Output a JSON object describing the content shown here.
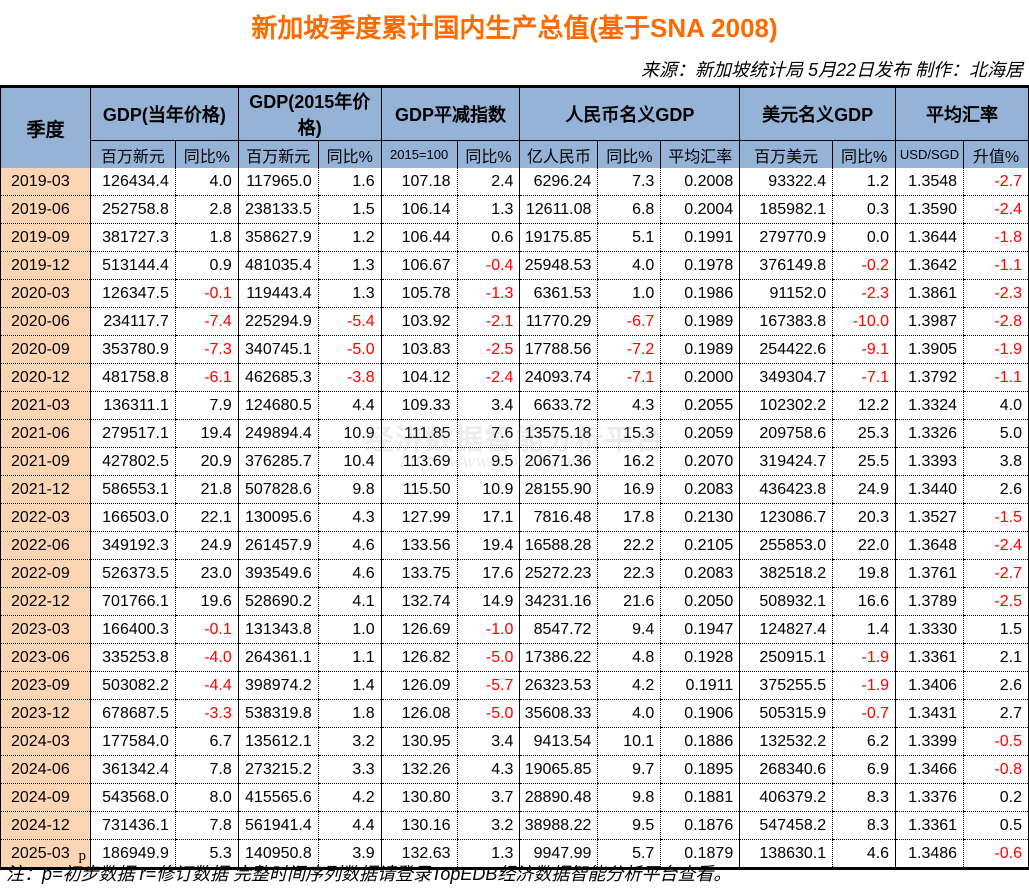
{
  "title": "新加坡季度累计国内生产总值(基于SNA 2008)",
  "source": "来源：新加坡统计局 5月22日发布  制作：北海居",
  "watermark": {
    "text": "经济数据智能分析平台",
    "url": "http://www.topedb.com"
  },
  "header": {
    "corner": "季度",
    "groups": [
      "GDP(当年价格)",
      "GDP(2015年价格)",
      "GDP平减指数",
      "人民币名义GDP",
      "美元名义GDP",
      "平均汇率"
    ],
    "sub": [
      "百万新元",
      "同比%",
      "百万新元",
      "同比%",
      "2015=100",
      "同比%",
      "亿人民币",
      "同比%",
      "平均汇率",
      "百万美元",
      "同比%",
      "USD/SGD",
      "升值%"
    ]
  },
  "colors": {
    "title": "#ff6a00",
    "header_bg": "#95b3d7",
    "quarter_bg": "#fcd5b4",
    "negative": "#ff0000"
  },
  "rows": [
    {
      "q": "2019-03",
      "flag": "",
      "v": [
        "126434.4",
        "4.0",
        "117965.0",
        "1.6",
        "107.18",
        "2.4",
        "6296.24",
        "7.3",
        "0.2008",
        "93322.4",
        "1.2",
        "1.3548",
        "-2.7"
      ]
    },
    {
      "q": "2019-06",
      "flag": "",
      "v": [
        "252758.8",
        "2.8",
        "238133.5",
        "1.5",
        "106.14",
        "1.3",
        "12611.08",
        "6.8",
        "0.2004",
        "185982.1",
        "0.3",
        "1.3590",
        "-2.4"
      ]
    },
    {
      "q": "2019-09",
      "flag": "",
      "v": [
        "381727.3",
        "1.8",
        "358627.9",
        "1.2",
        "106.44",
        "0.6",
        "19175.85",
        "5.1",
        "0.1991",
        "279770.9",
        "0.0",
        "1.3644",
        "-1.8"
      ]
    },
    {
      "q": "2019-12",
      "flag": "",
      "v": [
        "513144.4",
        "0.9",
        "481035.4",
        "1.3",
        "106.67",
        "-0.4",
        "25948.53",
        "4.0",
        "0.1978",
        "376149.8",
        "-0.2",
        "1.3642",
        "-1.1"
      ]
    },
    {
      "q": "2020-03",
      "flag": "",
      "v": [
        "126347.5",
        "-0.1",
        "119443.4",
        "1.3",
        "105.78",
        "-1.3",
        "6361.53",
        "1.0",
        "0.1986",
        "91152.0",
        "-2.3",
        "1.3861",
        "-2.3"
      ]
    },
    {
      "q": "2020-06",
      "flag": "",
      "v": [
        "234117.7",
        "-7.4",
        "225294.9",
        "-5.4",
        "103.92",
        "-2.1",
        "11770.29",
        "-6.7",
        "0.1989",
        "167383.8",
        "-10.0",
        "1.3987",
        "-2.8"
      ]
    },
    {
      "q": "2020-09",
      "flag": "",
      "v": [
        "353780.9",
        "-7.3",
        "340745.1",
        "-5.0",
        "103.83",
        "-2.5",
        "17788.56",
        "-7.2",
        "0.1989",
        "254422.6",
        "-9.1",
        "1.3905",
        "-1.9"
      ]
    },
    {
      "q": "2020-12",
      "flag": "",
      "v": [
        "481758.8",
        "-6.1",
        "462685.3",
        "-3.8",
        "104.12",
        "-2.4",
        "24093.74",
        "-7.1",
        "0.2000",
        "349304.7",
        "-7.1",
        "1.3792",
        "-1.1"
      ]
    },
    {
      "q": "2021-03",
      "flag": "",
      "v": [
        "136311.1",
        "7.9",
        "124680.5",
        "4.4",
        "109.33",
        "3.4",
        "6633.72",
        "4.3",
        "0.2055",
        "102302.2",
        "12.2",
        "1.3324",
        "4.0"
      ]
    },
    {
      "q": "2021-06",
      "flag": "",
      "v": [
        "279517.1",
        "19.4",
        "249894.4",
        "10.9",
        "111.85",
        "7.6",
        "13575.18",
        "15.3",
        "0.2059",
        "209758.6",
        "25.3",
        "1.3326",
        "5.0"
      ]
    },
    {
      "q": "2021-09",
      "flag": "",
      "v": [
        "427802.5",
        "20.9",
        "376285.7",
        "10.4",
        "113.69",
        "9.5",
        "20671.36",
        "16.2",
        "0.2070",
        "319424.7",
        "25.5",
        "1.3393",
        "3.8"
      ]
    },
    {
      "q": "2021-12",
      "flag": "",
      "v": [
        "586553.1",
        "21.8",
        "507828.6",
        "9.8",
        "115.50",
        "10.9",
        "28155.90",
        "16.9",
        "0.2083",
        "436423.8",
        "24.9",
        "1.3440",
        "2.6"
      ]
    },
    {
      "q": "2022-03",
      "flag": "",
      "v": [
        "166503.0",
        "22.1",
        "130095.6",
        "4.3",
        "127.99",
        "17.1",
        "7816.48",
        "17.8",
        "0.2130",
        "123086.7",
        "20.3",
        "1.3527",
        "-1.5"
      ]
    },
    {
      "q": "2022-06",
      "flag": "",
      "v": [
        "349192.3",
        "24.9",
        "261457.9",
        "4.6",
        "133.56",
        "19.4",
        "16588.28",
        "22.2",
        "0.2105",
        "255853.0",
        "22.0",
        "1.3648",
        "-2.4"
      ]
    },
    {
      "q": "2022-09",
      "flag": "",
      "v": [
        "526373.5",
        "23.0",
        "393549.6",
        "4.6",
        "133.75",
        "17.6",
        "25272.23",
        "22.3",
        "0.2083",
        "382518.2",
        "19.8",
        "1.3761",
        "-2.7"
      ]
    },
    {
      "q": "2022-12",
      "flag": "",
      "v": [
        "701766.1",
        "19.6",
        "528690.2",
        "4.1",
        "132.74",
        "14.9",
        "34231.16",
        "21.6",
        "0.2050",
        "508932.1",
        "16.6",
        "1.3789",
        "-2.5"
      ]
    },
    {
      "q": "2023-03",
      "flag": "",
      "v": [
        "166400.3",
        "-0.1",
        "131343.8",
        "1.0",
        "126.69",
        "-1.0",
        "8547.72",
        "9.4",
        "0.1947",
        "124827.4",
        "1.4",
        "1.3330",
        "1.5"
      ]
    },
    {
      "q": "2023-06",
      "flag": "",
      "v": [
        "335253.8",
        "-4.0",
        "264361.1",
        "1.1",
        "126.82",
        "-5.0",
        "17386.22",
        "4.8",
        "0.1928",
        "250915.1",
        "-1.9",
        "1.3361",
        "2.1"
      ]
    },
    {
      "q": "2023-09",
      "flag": "",
      "v": [
        "503082.2",
        "-4.4",
        "398974.2",
        "1.4",
        "126.09",
        "-5.7",
        "26323.53",
        "4.2",
        "0.1911",
        "375255.5",
        "-1.9",
        "1.3406",
        "2.6"
      ]
    },
    {
      "q": "2023-12",
      "flag": "",
      "v": [
        "678687.5",
        "-3.3",
        "538319.8",
        "1.8",
        "126.08",
        "-5.0",
        "35608.33",
        "4.0",
        "0.1906",
        "505315.9",
        "-0.7",
        "1.3431",
        "2.7"
      ]
    },
    {
      "q": "2024-03",
      "flag": "",
      "v": [
        "177584.0",
        "6.7",
        "135612.1",
        "3.2",
        "130.95",
        "3.4",
        "9413.54",
        "10.1",
        "0.1886",
        "132532.2",
        "6.2",
        "1.3399",
        "-0.5"
      ]
    },
    {
      "q": "2024-06",
      "flag": "",
      "v": [
        "361342.4",
        "7.8",
        "273215.2",
        "3.3",
        "132.26",
        "4.3",
        "19065.85",
        "9.7",
        "0.1895",
        "268340.6",
        "6.9",
        "1.3466",
        "-0.8"
      ]
    },
    {
      "q": "2024-09",
      "flag": "",
      "v": [
        "543568.0",
        "8.0",
        "415565.6",
        "4.2",
        "130.80",
        "3.7",
        "28890.48",
        "9.8",
        "0.1881",
        "406379.2",
        "8.3",
        "1.3376",
        "0.2"
      ]
    },
    {
      "q": "2024-12",
      "flag": "",
      "v": [
        "731436.1",
        "7.8",
        "561941.4",
        "4.4",
        "130.16",
        "3.2",
        "38988.22",
        "9.5",
        "0.1876",
        "547458.2",
        "8.3",
        "1.3361",
        "0.5"
      ]
    },
    {
      "q": "2025-03",
      "flag": "p",
      "v": [
        "186949.9",
        "5.3",
        "140950.8",
        "3.9",
        "132.63",
        "1.3",
        "9947.99",
        "5.7",
        "0.1879",
        "138630.1",
        "4.6",
        "1.3486",
        "-0.6"
      ]
    }
  ],
  "note": "注：p=初步数据 r=修订数据 完整时间序列数据请登录TopEDB经济数据智能分析平台查看。"
}
